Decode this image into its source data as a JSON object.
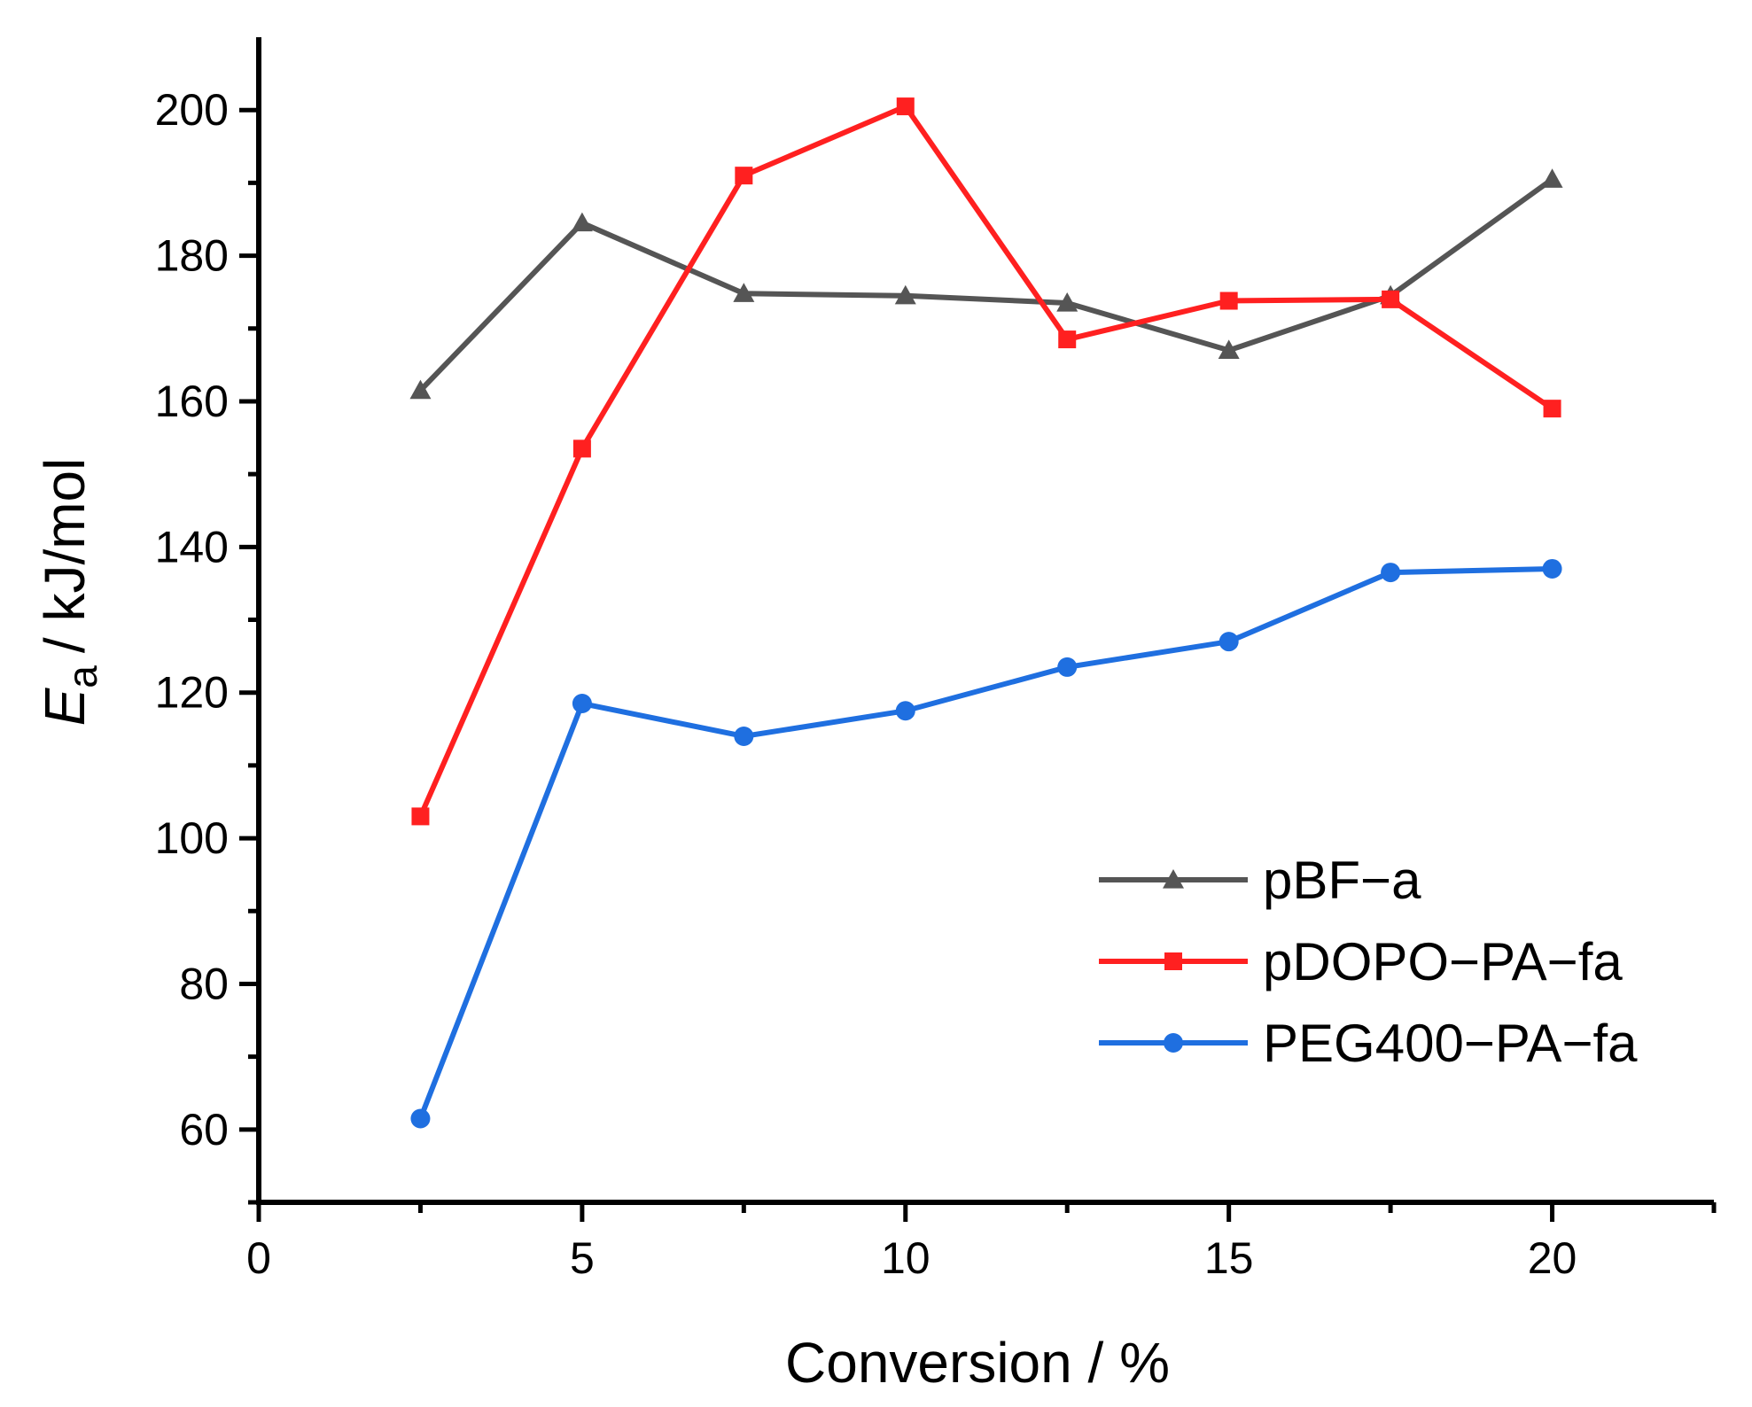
{
  "chart_data": {
    "type": "line",
    "title": "",
    "xlabel": "Conversion / %",
    "ylabel": {
      "symbol": "E",
      "subscript": "a",
      "unit": "/  kJ/mol"
    },
    "xlim": [
      0,
      22.5
    ],
    "ylim": [
      50,
      210
    ],
    "xticks": [
      0,
      5,
      10,
      15,
      20
    ],
    "yticks": [
      60,
      80,
      100,
      120,
      140,
      160,
      180,
      200
    ],
    "grid": false,
    "legend_position": "bottom-right",
    "series": [
      {
        "name": "pBF−a",
        "color": "#555555",
        "marker": "triangle",
        "x": [
          2.5,
          5,
          7.5,
          10,
          12.5,
          15,
          17.5,
          20
        ],
        "y": [
          161.5,
          184.5,
          174.8,
          174.5,
          173.5,
          167,
          174.5,
          190.5
        ]
      },
      {
        "name": "pDOPO−PA−fa",
        "color": "#ff2020",
        "marker": "square",
        "x": [
          2.5,
          5,
          7.5,
          10,
          12.5,
          15,
          17.5,
          20
        ],
        "y": [
          103,
          153.5,
          191,
          200.5,
          168.5,
          173.8,
          174,
          159
        ]
      },
      {
        "name": "PEG400−PA−fa",
        "color": "#1f6fe0",
        "marker": "circle",
        "x": [
          2.5,
          5,
          7.5,
          10,
          12.5,
          15,
          17.5,
          20
        ],
        "y": [
          61.5,
          118.5,
          114,
          117.5,
          123.5,
          127,
          136.5,
          137
        ]
      }
    ]
  }
}
